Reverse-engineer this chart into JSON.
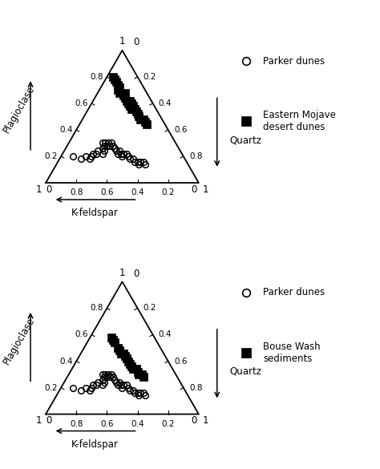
{
  "diagram1": {
    "legend1": "Parker dunes",
    "legend2": "Eastern Mojave\ndesert dunes",
    "circles_plag": [
      0.2,
      0.18,
      0.2,
      0.18,
      0.2,
      0.22,
      0.22,
      0.24,
      0.22,
      0.24,
      0.26,
      0.28,
      0.3,
      0.3,
      0.28,
      0.28,
      0.3,
      0.3,
      0.28,
      0.26,
      0.24,
      0.22,
      0.24,
      0.22,
      0.2,
      0.22,
      0.22,
      0.2,
      0.18,
      0.18,
      0.16,
      0.16,
      0.14,
      0.16,
      0.16,
      0.14
    ],
    "circles_kfeld": [
      0.72,
      0.68,
      0.64,
      0.62,
      0.6,
      0.58,
      0.56,
      0.54,
      0.52,
      0.5,
      0.5,
      0.48,
      0.48,
      0.46,
      0.46,
      0.44,
      0.44,
      0.42,
      0.42,
      0.42,
      0.42,
      0.42,
      0.4,
      0.4,
      0.4,
      0.38,
      0.36,
      0.36,
      0.36,
      0.34,
      0.34,
      0.32,
      0.32,
      0.3,
      0.28,
      0.28
    ],
    "circles_qtz": [
      0.08,
      0.14,
      0.16,
      0.2,
      0.2,
      0.2,
      0.22,
      0.22,
      0.26,
      0.26,
      0.24,
      0.24,
      0.22,
      0.24,
      0.26,
      0.28,
      0.26,
      0.28,
      0.3,
      0.32,
      0.34,
      0.36,
      0.36,
      0.38,
      0.4,
      0.4,
      0.42,
      0.44,
      0.46,
      0.48,
      0.5,
      0.52,
      0.54,
      0.54,
      0.56,
      0.58
    ],
    "squares_plag": [
      0.8,
      0.78,
      0.76,
      0.74,
      0.72,
      0.7,
      0.68,
      0.68,
      0.66,
      0.64,
      0.62,
      0.62,
      0.6,
      0.6,
      0.58,
      0.58,
      0.56,
      0.56,
      0.54,
      0.52,
      0.5,
      0.48,
      0.48,
      0.46,
      0.44
    ],
    "squares_kfeld": [
      0.16,
      0.16,
      0.16,
      0.16,
      0.16,
      0.18,
      0.18,
      0.14,
      0.16,
      0.16,
      0.16,
      0.14,
      0.16,
      0.14,
      0.16,
      0.14,
      0.16,
      0.14,
      0.14,
      0.14,
      0.14,
      0.14,
      0.12,
      0.12,
      0.12
    ],
    "squares_qtz": [
      0.04,
      0.06,
      0.08,
      0.1,
      0.12,
      0.12,
      0.14,
      0.18,
      0.18,
      0.2,
      0.22,
      0.24,
      0.24,
      0.26,
      0.26,
      0.28,
      0.28,
      0.3,
      0.32,
      0.34,
      0.36,
      0.38,
      0.4,
      0.42,
      0.44
    ]
  },
  "diagram2": {
    "legend1": "Parker dunes",
    "legend2": "Bouse Wash\nsediments",
    "circles_plag": [
      0.2,
      0.18,
      0.2,
      0.18,
      0.2,
      0.22,
      0.22,
      0.24,
      0.22,
      0.24,
      0.26,
      0.28,
      0.3,
      0.3,
      0.28,
      0.28,
      0.3,
      0.3,
      0.28,
      0.26,
      0.24,
      0.22,
      0.24,
      0.22,
      0.2,
      0.22,
      0.22,
      0.2,
      0.18,
      0.18,
      0.16,
      0.16,
      0.14,
      0.16,
      0.16,
      0.14
    ],
    "circles_kfeld": [
      0.72,
      0.68,
      0.64,
      0.62,
      0.6,
      0.58,
      0.56,
      0.54,
      0.52,
      0.5,
      0.5,
      0.48,
      0.48,
      0.46,
      0.46,
      0.44,
      0.44,
      0.42,
      0.42,
      0.42,
      0.42,
      0.42,
      0.4,
      0.4,
      0.4,
      0.38,
      0.36,
      0.36,
      0.36,
      0.34,
      0.34,
      0.32,
      0.32,
      0.3,
      0.28,
      0.28
    ],
    "circles_qtz": [
      0.08,
      0.14,
      0.16,
      0.2,
      0.2,
      0.2,
      0.22,
      0.22,
      0.26,
      0.26,
      0.24,
      0.24,
      0.22,
      0.24,
      0.26,
      0.28,
      0.26,
      0.28,
      0.3,
      0.32,
      0.34,
      0.36,
      0.36,
      0.38,
      0.4,
      0.4,
      0.42,
      0.44,
      0.46,
      0.48,
      0.5,
      0.52,
      0.54,
      0.54,
      0.56,
      0.58
    ],
    "squares_plag": [
      0.58,
      0.56,
      0.54,
      0.5,
      0.48,
      0.46,
      0.46,
      0.44,
      0.42,
      0.4,
      0.38,
      0.36,
      0.34,
      0.34,
      0.32,
      0.3,
      0.3,
      0.28
    ],
    "squares_kfeld": [
      0.28,
      0.28,
      0.28,
      0.28,
      0.28,
      0.28,
      0.26,
      0.26,
      0.26,
      0.26,
      0.26,
      0.26,
      0.26,
      0.24,
      0.24,
      0.24,
      0.22,
      0.22
    ],
    "squares_qtz": [
      0.14,
      0.16,
      0.18,
      0.22,
      0.24,
      0.26,
      0.28,
      0.3,
      0.32,
      0.34,
      0.36,
      0.38,
      0.4,
      0.42,
      0.44,
      0.46,
      0.48,
      0.5
    ]
  },
  "tick_values": [
    0.2,
    0.4,
    0.6,
    0.8
  ]
}
